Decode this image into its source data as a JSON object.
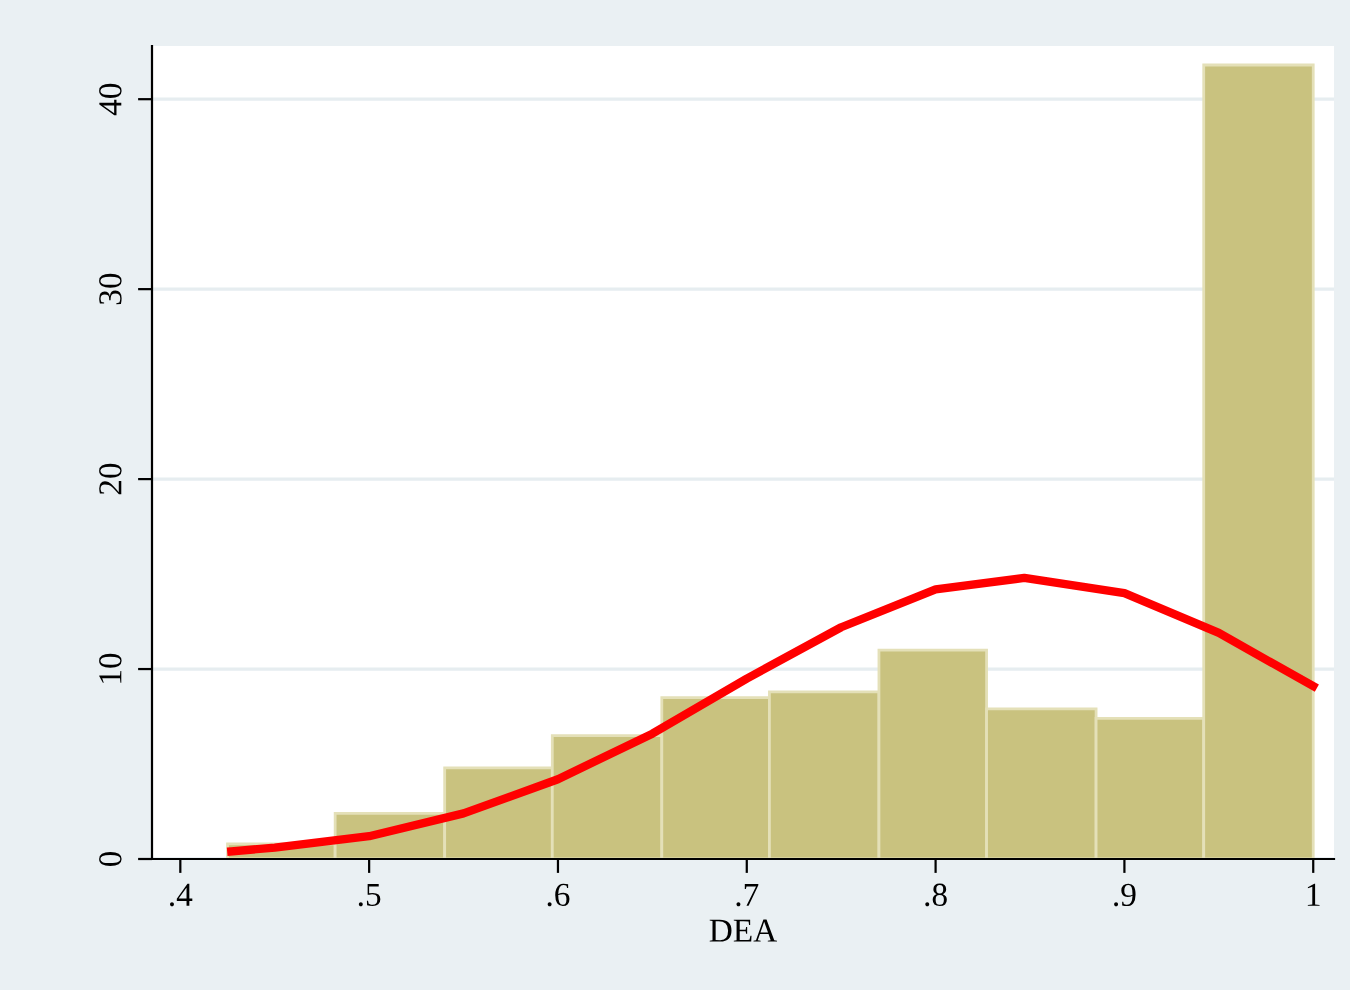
{
  "chart_data": {
    "type": "histogram",
    "xlabel": "DEA",
    "series": [
      {
        "color": "#c9c27f",
        "bins": [
          0.425,
          0.482,
          0.54,
          0.597,
          0.655,
          0.712,
          0.77,
          0.827,
          0.885,
          0.942,
          1.0
        ],
        "values": [
          0.8,
          2.4,
          4.8,
          6.5,
          8.5,
          8.8,
          11.0,
          7.9,
          7.4,
          41.8
        ]
      },
      {
        "type": "line",
        "color": "#ff0000",
        "x": [
          0.427,
          0.45,
          0.5,
          0.55,
          0.6,
          0.65,
          0.7,
          0.75,
          0.8,
          0.847,
          0.9,
          0.95,
          1.0
        ],
        "values": [
          0.4,
          0.6,
          1.2,
          2.4,
          4.2,
          6.6,
          9.5,
          12.2,
          14.2,
          14.8,
          14.0,
          11.9,
          9.1
        ]
      }
    ],
    "xlim": [
      0.385,
      1.011
    ],
    "ylim": [
      0,
      42.8
    ],
    "xticks": [
      {
        "value": 0.4,
        "label": ".4"
      },
      {
        "value": 0.5,
        "label": ".5"
      },
      {
        "value": 0.6,
        "label": ".6"
      },
      {
        "value": 0.7,
        "label": ".7"
      },
      {
        "value": 0.8,
        "label": ".8"
      },
      {
        "value": 0.9,
        "label": ".9"
      },
      {
        "value": 1,
        "label": "1"
      }
    ],
    "yticks": [
      0,
      10,
      20,
      30,
      40
    ],
    "grid": "y"
  }
}
